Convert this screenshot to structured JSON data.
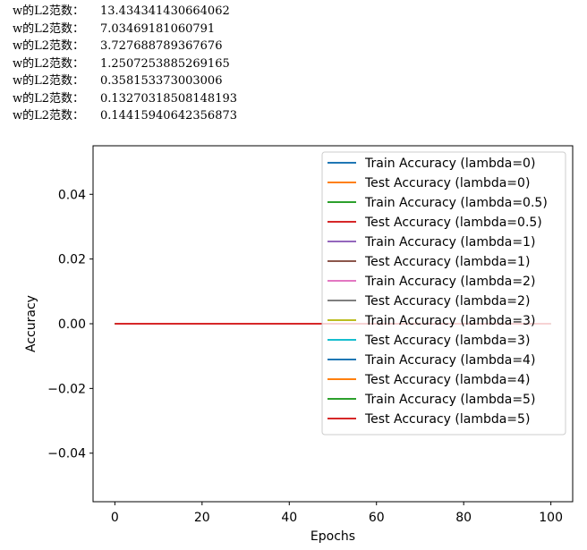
{
  "console": {
    "lines": [
      {
        "label": "w的L2范数：",
        "value": "13.434341430664062"
      },
      {
        "label": "w的L2范数：",
        "value": "7.03469181060791"
      },
      {
        "label": "w的L2范数：",
        "value": "3.727688789367676"
      },
      {
        "label": "w的L2范数：",
        "value": "1.2507253885269165"
      },
      {
        "label": "w的L2范数：",
        "value": "0.358153373003006"
      },
      {
        "label": "w的L2范数：",
        "value": "0.13270318508148193"
      },
      {
        "label": "w的L2范数：",
        "value": "0.14415940642356873"
      }
    ]
  },
  "chart_data": {
    "type": "line",
    "title": "",
    "xlabel": "Epochs",
    "ylabel": "Accuracy",
    "xlim": [
      -5,
      105
    ],
    "ylim": [
      -0.055,
      0.055
    ],
    "xticks": [
      0,
      20,
      40,
      60,
      80,
      100
    ],
    "xtick_labels": [
      "0",
      "20",
      "40",
      "60",
      "80",
      "100"
    ],
    "yticks": [
      -0.04,
      -0.02,
      0.0,
      0.02,
      0.04
    ],
    "ytick_labels": [
      "−0.04",
      "−0.02",
      "0.00",
      "0.02",
      "0.04"
    ],
    "grid": false,
    "legend_position": "top-right",
    "x": [
      0,
      100
    ],
    "series": [
      {
        "name": "Train Accuracy (lambda=0)",
        "color": "#1f77b4",
        "values": [
          0,
          0
        ]
      },
      {
        "name": "Test Accuracy (lambda=0)",
        "color": "#ff7f0e",
        "values": [
          0,
          0
        ]
      },
      {
        "name": "Train Accuracy (lambda=0.5)",
        "color": "#2ca02c",
        "values": [
          0,
          0
        ]
      },
      {
        "name": "Test Accuracy (lambda=0.5)",
        "color": "#d62728",
        "values": [
          0,
          0
        ]
      },
      {
        "name": "Train Accuracy (lambda=1)",
        "color": "#9467bd",
        "values": [
          0,
          0
        ]
      },
      {
        "name": "Test Accuracy (lambda=1)",
        "color": "#8c564b",
        "values": [
          0,
          0
        ]
      },
      {
        "name": "Train Accuracy (lambda=2)",
        "color": "#e377c2",
        "values": [
          0,
          0
        ]
      },
      {
        "name": "Test Accuracy (lambda=2)",
        "color": "#7f7f7f",
        "values": [
          0,
          0
        ]
      },
      {
        "name": "Train Accuracy (lambda=3)",
        "color": "#bcbd22",
        "values": [
          0,
          0
        ]
      },
      {
        "name": "Test Accuracy (lambda=3)",
        "color": "#17becf",
        "values": [
          0,
          0
        ]
      },
      {
        "name": "Train Accuracy (lambda=4)",
        "color": "#1f77b4",
        "values": [
          0,
          0
        ]
      },
      {
        "name": "Test Accuracy (lambda=4)",
        "color": "#ff7f0e",
        "values": [
          0,
          0
        ]
      },
      {
        "name": "Train Accuracy (lambda=5)",
        "color": "#2ca02c",
        "values": [
          0,
          0
        ]
      },
      {
        "name": "Test Accuracy (lambda=5)",
        "color": "#d62728",
        "values": [
          0,
          0
        ]
      }
    ]
  }
}
